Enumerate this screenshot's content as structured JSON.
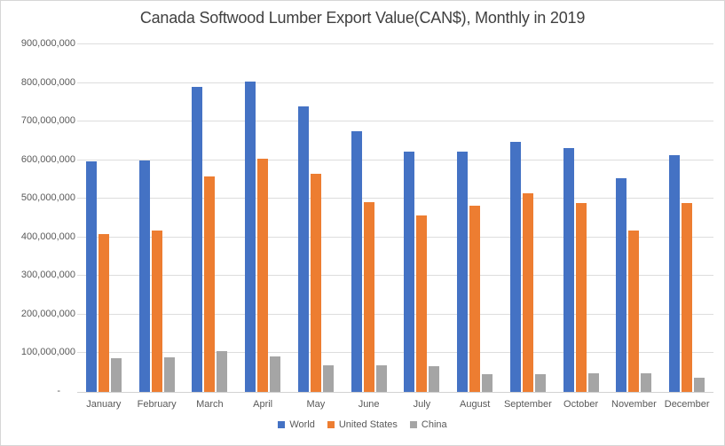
{
  "title": "Canada Softwood Lumber Export Value(CAN$), Monthly in 2019",
  "colors": {
    "world": "#4472C4",
    "united_states": "#ED7D31",
    "china": "#A5A5A5",
    "gridline": "#DDDDDD",
    "axis_line": "#D2D2D2",
    "axis_text": "#595959",
    "title_text": "#404040",
    "frame_border": "#D6D6D6"
  },
  "chart_data": {
    "type": "bar",
    "title": "Canada Softwood Lumber Export Value(CAN$), Monthly in 2019",
    "categories": [
      "January",
      "February",
      "March",
      "April",
      "May",
      "June",
      "July",
      "August",
      "September",
      "October",
      "November",
      "December"
    ],
    "series": [
      {
        "name": "World",
        "color": "#4472C4",
        "values": [
          598000000,
          600000000,
          790000000,
          803000000,
          739000000,
          674000000,
          622000000,
          622000000,
          647000000,
          632000000,
          553000000,
          613000000
        ]
      },
      {
        "name": "United States",
        "color": "#ED7D31",
        "values": [
          408000000,
          418000000,
          558000000,
          604000000,
          564000000,
          491000000,
          458000000,
          481000000,
          514000000,
          488000000,
          418000000,
          488000000
        ]
      },
      {
        "name": "China",
        "color": "#A5A5A5",
        "values": [
          87000000,
          90000000,
          105000000,
          92000000,
          69000000,
          70000000,
          66000000,
          45000000,
          45000000,
          49000000,
          49000000,
          37000000
        ]
      }
    ],
    "xlabel": "",
    "ylabel": "",
    "ylim": [
      0,
      900000000
    ],
    "ytick_interval": 100000000,
    "ytick_labels": [
      "-",
      "100,000,000",
      "200,000,000",
      "300,000,000",
      "400,000,000",
      "500,000,000",
      "600,000,000",
      "700,000,000",
      "800,000,000",
      "900,000,000"
    ],
    "grid": true,
    "legend_position": "bottom"
  }
}
